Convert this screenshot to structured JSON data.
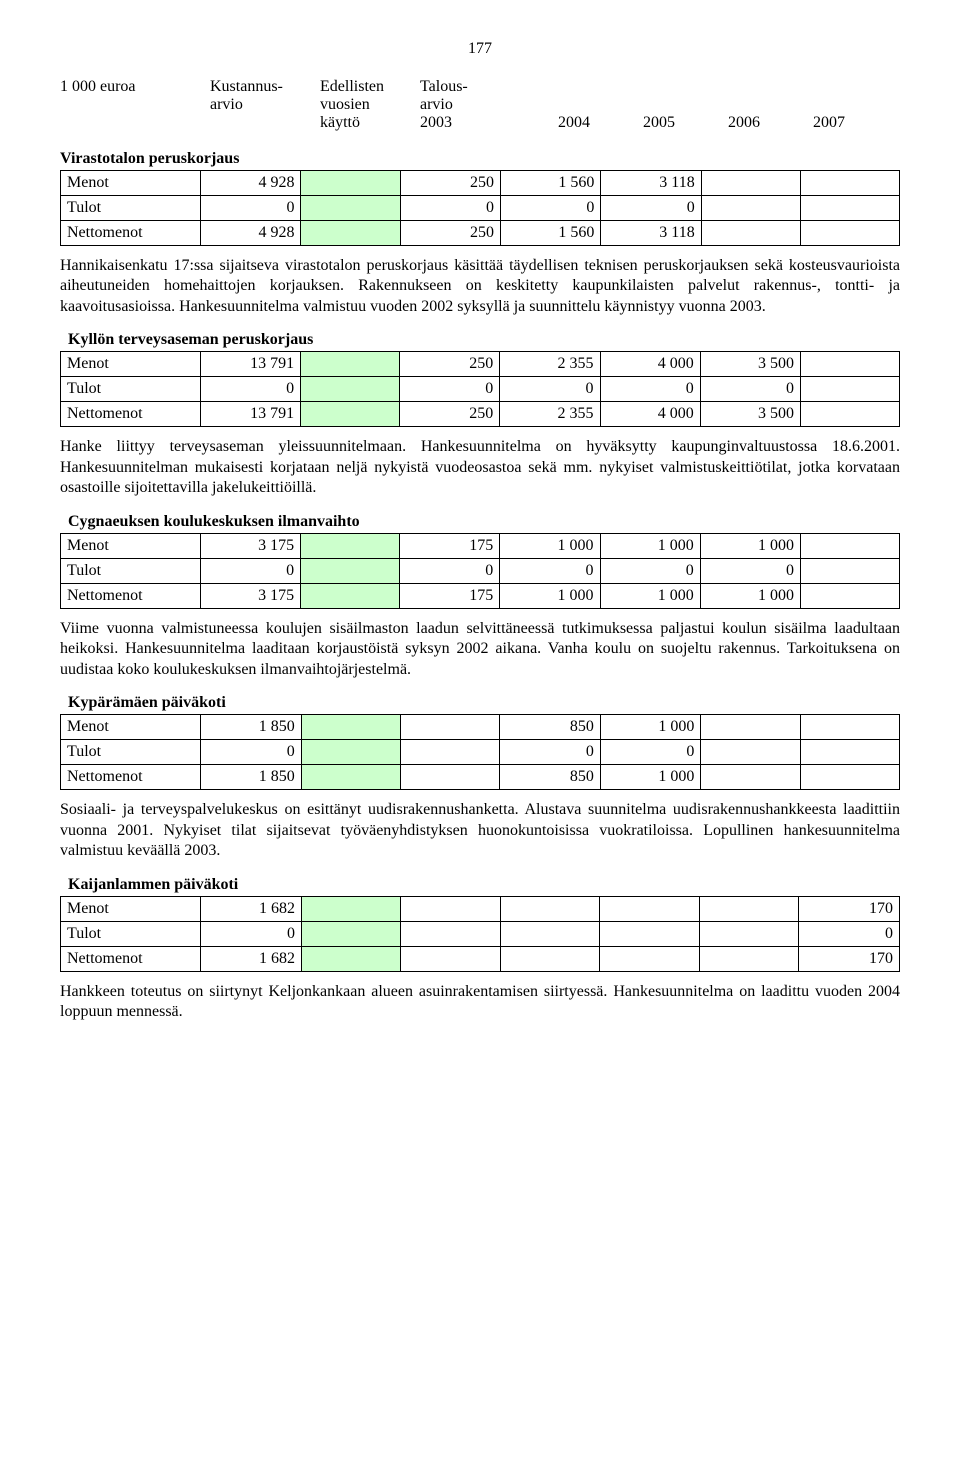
{
  "page_number": "177",
  "header": {
    "col1": "1 000 euroa",
    "col2a": "Kustannus-",
    "col2b": "arvio",
    "col3a": "Edellisten",
    "col3b": "vuosien",
    "col3c": "käyttö",
    "col4a": "Talous-",
    "col4b": "arvio",
    "col4c": "2003",
    "col5": "2004",
    "col6": "2005",
    "col7": "2006",
    "col8": "2007"
  },
  "row_labels": {
    "menot": "Menot",
    "tulot": "Tulot",
    "nettomenot": "Nettomenot"
  },
  "sections": {
    "virastotalo": {
      "title": "Virastotalon peruskorjaus",
      "menot": [
        "4 928",
        "",
        "250",
        "1 560",
        "3 118",
        "",
        ""
      ],
      "tulot": [
        "0",
        "",
        "0",
        "0",
        "0",
        "",
        ""
      ],
      "nettomenot": [
        "4 928",
        "",
        "250",
        "1 560",
        "3 118",
        "",
        ""
      ],
      "text": "Hannikaisenkatu 17:ssa sijaitseva virastotalon peruskorjaus käsittää täydellisen teknisen peruskorjauksen sekä kosteusvaurioista aiheutuneiden homehaittojen korjauksen. Rakennukseen on keskitetty kaupunkilaisten palvelut rakennus-, tontti- ja kaavoitusasioissa. Hankesuunnitelma valmistuu vuoden 2002 syksyllä ja suunnittelu käynnistyy vuonna 2003."
    },
    "kyllon": {
      "title": "Kyllön terveysaseman peruskorjaus",
      "menot": [
        "13 791",
        "",
        "250",
        "2 355",
        "4 000",
        "3 500",
        ""
      ],
      "tulot": [
        "0",
        "",
        "0",
        "0",
        "0",
        "0",
        ""
      ],
      "nettomenot": [
        "13 791",
        "",
        "250",
        "2 355",
        "4 000",
        "3 500",
        ""
      ],
      "text": "Hanke liittyy terveysaseman yleissuunnitelmaan. Hankesuunnitelma on hyväksytty kaupunginvaltuustossa 18.6.2001. Hankesuunnitelman mukaisesti korjataan neljä nykyistä vuodeosastoa sekä mm. nykyiset valmistuskeittiötilat, jotka korvataan osastoille sijoitettavilla jakelukeittiöillä."
    },
    "cygnaeus": {
      "title": "Cygnaeuksen koulukeskuksen ilmanvaihto",
      "menot": [
        "3 175",
        "",
        "175",
        "1 000",
        "1 000",
        "1 000",
        ""
      ],
      "tulot": [
        "0",
        "",
        "0",
        "0",
        "0",
        "0",
        ""
      ],
      "nettomenot": [
        "3 175",
        "",
        "175",
        "1 000",
        "1 000",
        "1 000",
        ""
      ],
      "text": "Viime vuonna valmistuneessa koulujen sisäilmaston laadun selvittäneessä tutkimuksessa paljastui koulun sisäilma laadultaan heikoksi. Hankesuunnitelma laaditaan korjaustöistä syksyn 2002 aikana. Vanha koulu on suojeltu rakennus. Tarkoituksena on uudistaa koko koulukeskuksen ilmanvaihtojärjestelmä."
    },
    "kyparamaen": {
      "title": "Kypärämäen päiväkoti",
      "menot": [
        "1 850",
        "",
        "",
        "850",
        "1 000",
        "",
        ""
      ],
      "tulot": [
        "0",
        "",
        "",
        "0",
        "0",
        "",
        ""
      ],
      "nettomenot": [
        "1 850",
        "",
        "",
        "850",
        "1 000",
        "",
        ""
      ],
      "text": "Sosiaali- ja terveyspalvelukeskus on esittänyt uudisrakennushanketta. Alustava suunnitelma uudisrakennushankkeesta laadittiin vuonna 2001. Nykyiset tilat sijaitsevat työväenyhdistyksen huonokuntoisissa vuokratiloissa. Lopullinen hankesuunnitelma valmistuu keväällä 2003."
    },
    "kaijanlammen": {
      "title": "Kaijanlammen päiväkoti",
      "menot": [
        "1 682",
        "",
        "",
        "",
        "",
        "",
        "170"
      ],
      "tulot": [
        "0",
        "",
        "",
        "",
        "",
        "",
        "0"
      ],
      "nettomenot": [
        "1 682",
        "",
        "",
        "",
        "",
        "",
        "170"
      ],
      "text": "Hankkeen toteutus on siirtynyt Keljonkankaan alueen asuinrakentamisen siirtyessä. Hankesuunnitelma on laadittu vuoden 2004 loppuun mennessä."
    }
  },
  "colors": {
    "highlight": "#ccffcc",
    "border": "#000000",
    "background": "#ffffff",
    "text": "#000000"
  },
  "typography": {
    "font_family": "Times New Roman",
    "body_fontsize_pt": 12,
    "title_weight": "bold"
  }
}
